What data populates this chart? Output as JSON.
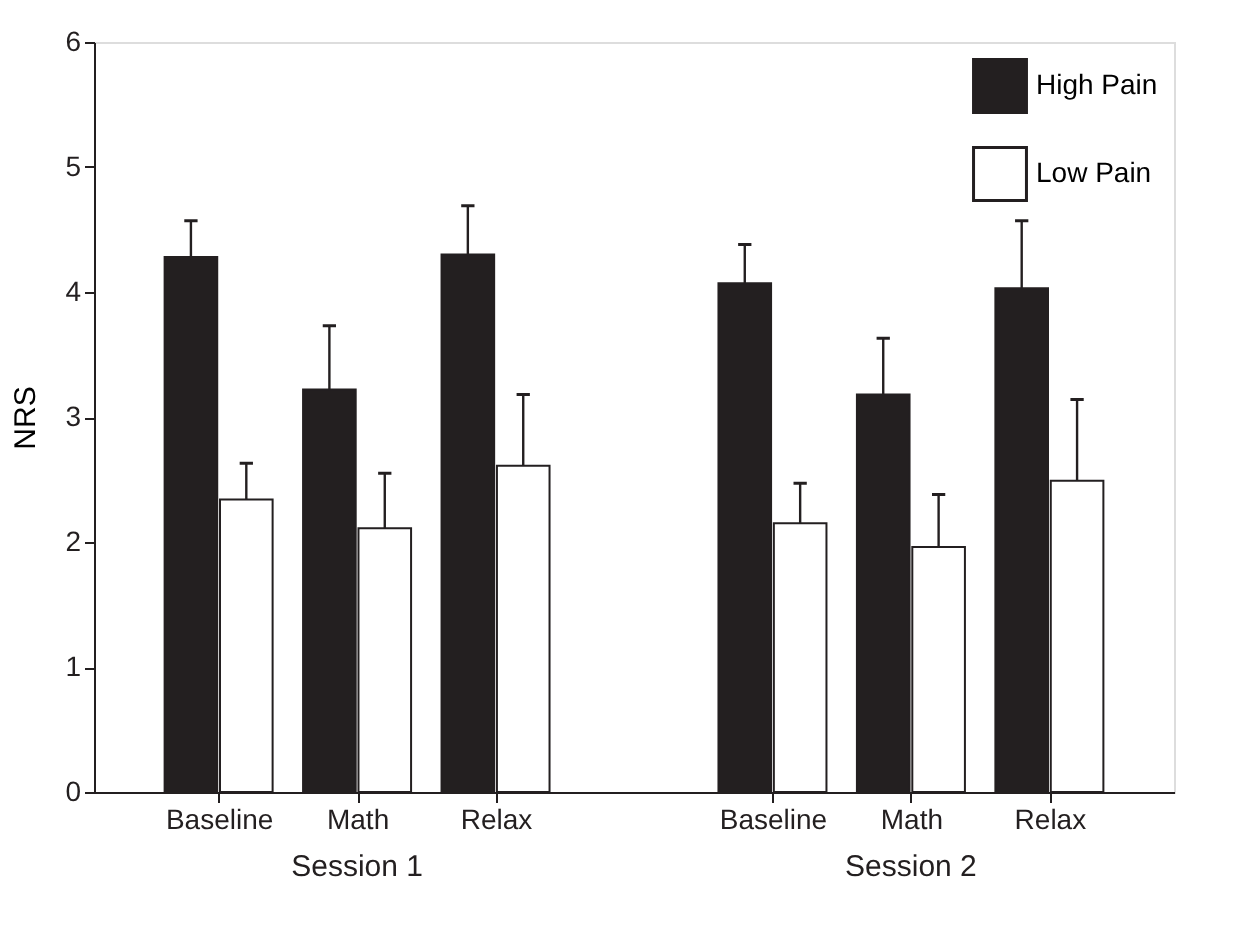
{
  "chart_data": {
    "type": "bar",
    "ylabel": "NRS",
    "categories": [
      "Baseline",
      "Math",
      "Relax",
      null,
      "Baseline",
      "Math",
      "Relax"
    ],
    "series": [
      {
        "name": "High Pain",
        "color": "#231f20",
        "values": [
          4.28,
          3.22,
          4.3,
          null,
          4.07,
          3.18,
          4.03
        ],
        "errors": [
          [
            4.28,
            4.57
          ],
          [
            3.22,
            3.73
          ],
          [
            4.3,
            4.69
          ],
          null,
          [
            4.07,
            4.38
          ],
          [
            3.18,
            3.63
          ],
          [
            4.03,
            4.57
          ]
        ]
      },
      {
        "name": "Low Pain",
        "color": "#ffffff",
        "values": [
          2.34,
          2.11,
          2.61,
          null,
          2.15,
          1.96,
          2.49
        ],
        "errors": [
          [
            2.34,
            2.63
          ],
          [
            2.11,
            2.55
          ],
          [
            2.61,
            3.18
          ],
          null,
          [
            2.15,
            2.47
          ],
          [
            1.96,
            2.38
          ],
          [
            2.49,
            3.14
          ]
        ]
      }
    ],
    "annotations": [
      "Session 1",
      "Session 2"
    ],
    "ylim": [
      0,
      6
    ],
    "yticks": [
      0,
      1,
      2,
      3,
      4,
      5,
      6
    ],
    "grid": false,
    "legend": "top right"
  }
}
